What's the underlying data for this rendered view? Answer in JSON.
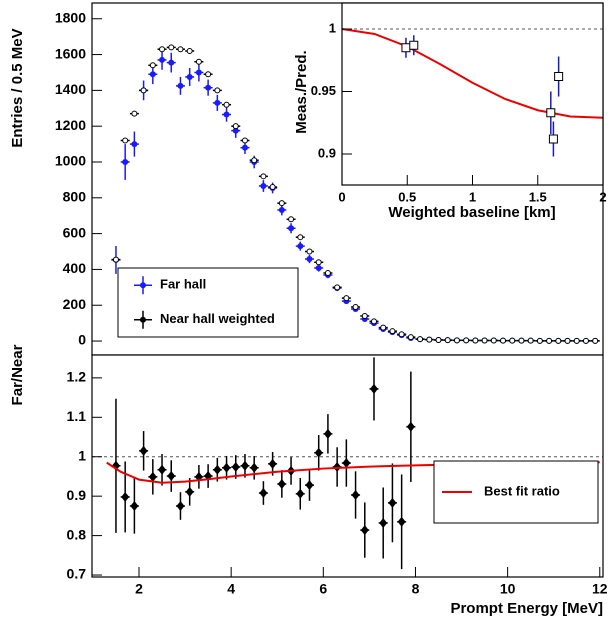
{
  "chart_data": [
    {
      "type": "errorbar",
      "ylabel": "Entries / 0.5 MeV",
      "xlim": [
        0.98,
        12.07
      ],
      "ylim": [
        -78,
        1888
      ],
      "yticks": [
        0,
        200,
        400,
        600,
        800,
        1000,
        1200,
        1400,
        1600,
        1800
      ],
      "legend": "lower left",
      "series": [
        {
          "name": "Far hall",
          "color": "#1a1aff",
          "marker": "filled-circle",
          "x": [
            1.5,
            1.7,
            1.9,
            2.1,
            2.3,
            2.5,
            2.7,
            2.9,
            3.1,
            3.3,
            3.5,
            3.7,
            3.9,
            4.1,
            4.3,
            4.5,
            4.7,
            4.9,
            5.1,
            5.3,
            5.5,
            5.7,
            5.9,
            6.1,
            6.3,
            6.5,
            6.7,
            6.9,
            7.1,
            7.3,
            7.5,
            7.7,
            7.9,
            8.1,
            8.3,
            8.5,
            8.7,
            8.9,
            9.1,
            9.3,
            9.5,
            9.7,
            9.9,
            10.1,
            10.3,
            10.5,
            10.7,
            10.9,
            11.1,
            11.3,
            11.5,
            11.7,
            11.9
          ],
          "values": [
            453,
            1000,
            1100,
            1400,
            1490,
            1570,
            1555,
            1425,
            1475,
            1500,
            1415,
            1330,
            1265,
            1175,
            1080,
            1000,
            866,
            855,
            732,
            630,
            530,
            458,
            408,
            369,
            296,
            223,
            179,
            123,
            100,
            67,
            50,
            33,
            17,
            10,
            8,
            6,
            5,
            4,
            4,
            3,
            3,
            3,
            2,
            2,
            2,
            2,
            1,
            1,
            1,
            1,
            1,
            1,
            1
          ],
          "errors": [
            78,
            100,
            70,
            55,
            55,
            55,
            55,
            50,
            50,
            50,
            45,
            45,
            40,
            40,
            35,
            35,
            33,
            30,
            30,
            28,
            25,
            23,
            20,
            18,
            17,
            16,
            14,
            12,
            10,
            9,
            8,
            7,
            6,
            2,
            2,
            2,
            2,
            2,
            2,
            2,
            2,
            2,
            2,
            2,
            2,
            2,
            2,
            2,
            2,
            2,
            2,
            2,
            2
          ]
        },
        {
          "name": "Near hall weighted",
          "color": "#000000",
          "marker": "open-circle",
          "x": [
            1.5,
            1.7,
            1.9,
            2.1,
            2.3,
            2.5,
            2.7,
            2.9,
            3.1,
            3.3,
            3.5,
            3.7,
            3.9,
            4.1,
            4.3,
            4.5,
            4.7,
            4.9,
            5.1,
            5.3,
            5.5,
            5.7,
            5.9,
            6.1,
            6.3,
            6.5,
            6.7,
            6.9,
            7.1,
            7.3,
            7.5,
            7.7,
            7.9,
            8.1,
            8.3,
            8.5,
            8.7,
            8.9,
            9.1,
            9.3,
            9.5,
            9.7,
            9.9,
            10.1,
            10.3,
            10.5,
            10.7,
            10.9,
            11.1,
            11.3,
            11.5,
            11.7,
            11.9
          ],
          "values": [
            455,
            1120,
            1270,
            1400,
            1540,
            1630,
            1640,
            1630,
            1620,
            1560,
            1490,
            1400,
            1320,
            1200,
            1120,
            1010,
            920,
            860,
            770,
            680,
            580,
            500,
            440,
            380,
            300,
            240,
            190,
            140,
            110,
            75,
            55,
            38,
            22,
            11,
            8,
            6,
            5,
            4,
            4,
            3,
            3,
            3,
            2,
            2,
            2,
            2,
            1,
            1,
            1,
            1,
            1,
            1,
            1
          ]
        }
      ]
    },
    {
      "type": "errorbar",
      "ylabel": "Meas./Pred.",
      "xlabel": "Weighted baseline [km]",
      "xlim": [
        0,
        2
      ],
      "ylim": [
        0.8752,
        1.0208
      ],
      "xticks": [
        0,
        0.5,
        1,
        1.5,
        2
      ],
      "yticks": [
        0.9,
        0.95,
        1
      ],
      "hline": 1,
      "series": [
        {
          "color": "#ee0000",
          "style": "line",
          "x": [
            0,
            0.25,
            0.5,
            0.75,
            1,
            1.25,
            1.5,
            1.75,
            2
          ],
          "values": [
            1.0,
            0.996,
            0.986,
            0.972,
            0.957,
            0.944,
            0.935,
            0.93,
            0.929
          ]
        },
        {
          "color": "#1a1acc",
          "marker": "open-square",
          "x": [
            0.49,
            0.55,
            1.6,
            1.62,
            1.66
          ],
          "values": [
            0.985,
            0.987,
            0.933,
            0.912,
            0.962
          ],
          "errors": [
            0.008,
            0.008,
            0.017,
            0.014,
            0.016
          ]
        }
      ]
    },
    {
      "type": "errorbar",
      "ylabel": "Far/Near",
      "xlabel": "Prompt Energy [MeV]",
      "xlim": [
        0.98,
        12.07
      ],
      "ylim": [
        0.695,
        1.258
      ],
      "xticks": [
        2,
        4,
        6,
        8,
        10,
        12
      ],
      "yticks": [
        0.7,
        0.8,
        0.9,
        1,
        1.1,
        1.2
      ],
      "hline": 1,
      "legend": "lower right",
      "series": [
        {
          "color": "#000000",
          "marker": "filled-diamond",
          "x": [
            1.5,
            1.7,
            1.9,
            2.1,
            2.3,
            2.5,
            2.7,
            2.9,
            3.1,
            3.3,
            3.5,
            3.7,
            3.9,
            4.1,
            4.3,
            4.5,
            4.7,
            4.9,
            5.1,
            5.3,
            5.5,
            5.7,
            5.9,
            6.1,
            6.3,
            6.5,
            6.7,
            6.9,
            7.1,
            7.3,
            7.5,
            7.7,
            7.9
          ],
          "values": [
            0.977,
            0.898,
            0.875,
            1.015,
            0.949,
            0.967,
            0.951,
            0.875,
            0.911,
            0.949,
            0.951,
            0.967,
            0.972,
            0.974,
            0.977,
            0.972,
            0.908,
            0.982,
            0.931,
            0.964,
            0.906,
            0.928,
            1.01,
            1.058,
            0.974,
            0.984,
            0.903,
            0.814,
            1.172,
            0.832,
            0.883,
            0.835,
            1.076
          ],
          "errors": [
            0.17,
            0.09,
            0.07,
            0.05,
            0.045,
            0.04,
            0.04,
            0.035,
            0.035,
            0.03,
            0.03,
            0.03,
            0.03,
            0.03,
            0.03,
            0.03,
            0.03,
            0.03,
            0.035,
            0.035,
            0.04,
            0.04,
            0.045,
            0.05,
            0.05,
            0.06,
            0.06,
            0.07,
            0.08,
            0.09,
            0.1,
            0.12,
            0.14
          ]
        },
        {
          "name": "Best fit ratio",
          "color": "#ee0000",
          "style": "line",
          "x": [
            1.3,
            1.6,
            2,
            2.5,
            3,
            3.5,
            4,
            5,
            6,
            7,
            8,
            9,
            10,
            11,
            12
          ],
          "values": [
            0.985,
            0.962,
            0.942,
            0.934,
            0.937,
            0.943,
            0.95,
            0.962,
            0.97,
            0.975,
            0.978,
            0.981,
            0.983,
            0.985,
            0.986
          ]
        }
      ]
    }
  ]
}
